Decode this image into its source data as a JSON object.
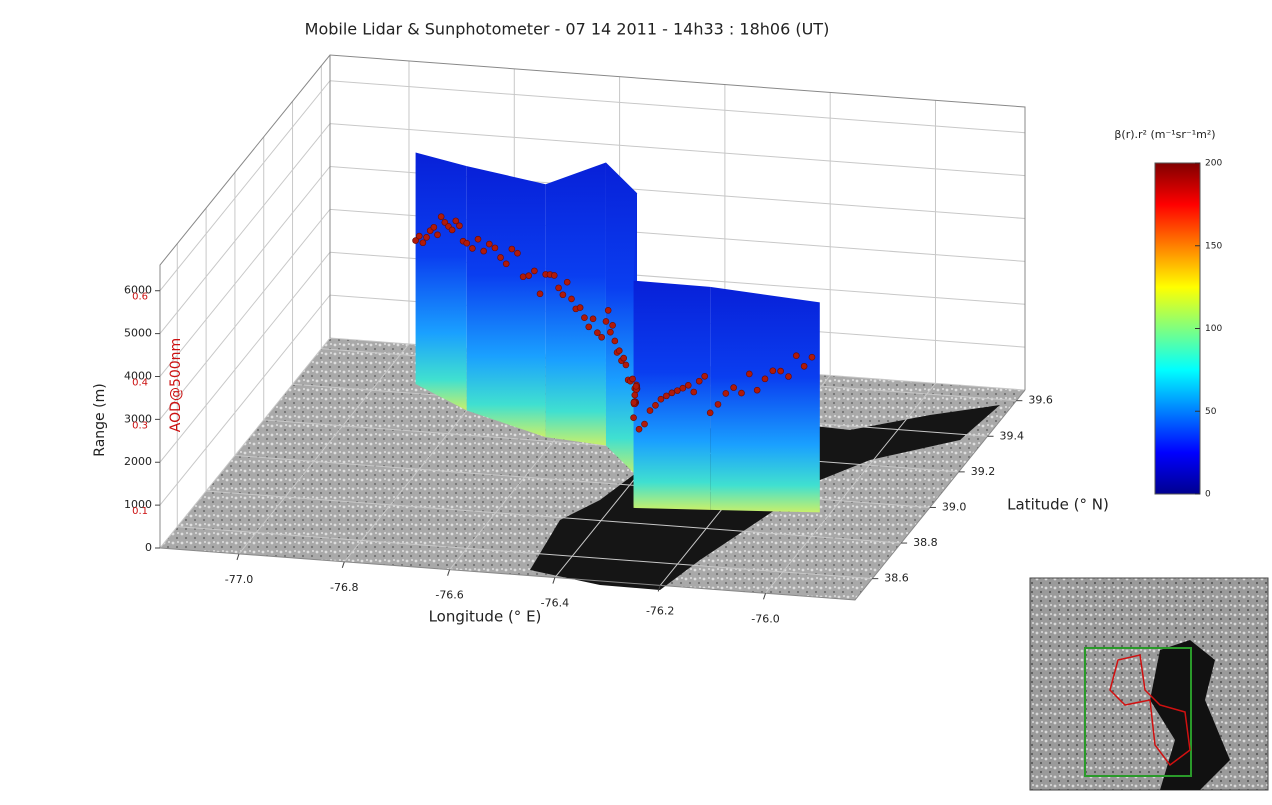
{
  "chart_data": {
    "type": "3d-curtain",
    "title": "Mobile Lidar & Sunphotometer - 07 14 2011 - 14h33 : 18h06 (UT)",
    "x_label": "Longitude (° E)",
    "y_label": "Latitude (° N)",
    "z_label": "Range (m)",
    "z2_label": "AOD@500nm",
    "xlim": [
      -77.15,
      -75.83
    ],
    "xticks": [
      {
        "value": -77.0,
        "label": "-77.0"
      },
      -76.8,
      -76.6,
      -76.4,
      -76.2,
      {
        "value": -76.0,
        "label": "-76.0"
      }
    ],
    "ylim": [
      38.48,
      39.66
    ],
    "yticks": [
      38.6,
      38.8,
      {
        "value": 39.0,
        "label": "39.0"
      },
      39.2,
      39.4,
      39.6
    ],
    "zlim": [
      0,
      6600
    ],
    "zticks": [
      0,
      1000,
      2000,
      3000,
      4000,
      5000,
      6000
    ],
    "z2lim": [
      0,
      0.66
    ],
    "z2ticks": [
      0.1,
      0.3,
      0.4,
      0.6
    ],
    "z2_color": "#cc1111",
    "colorbar": {
      "label": "β(r).r² (m⁻¹sr⁻¹m²)",
      "lim": [
        0,
        200
      ],
      "ticks": [
        0,
        50,
        100,
        150,
        200
      ]
    },
    "grid": true
  }
}
